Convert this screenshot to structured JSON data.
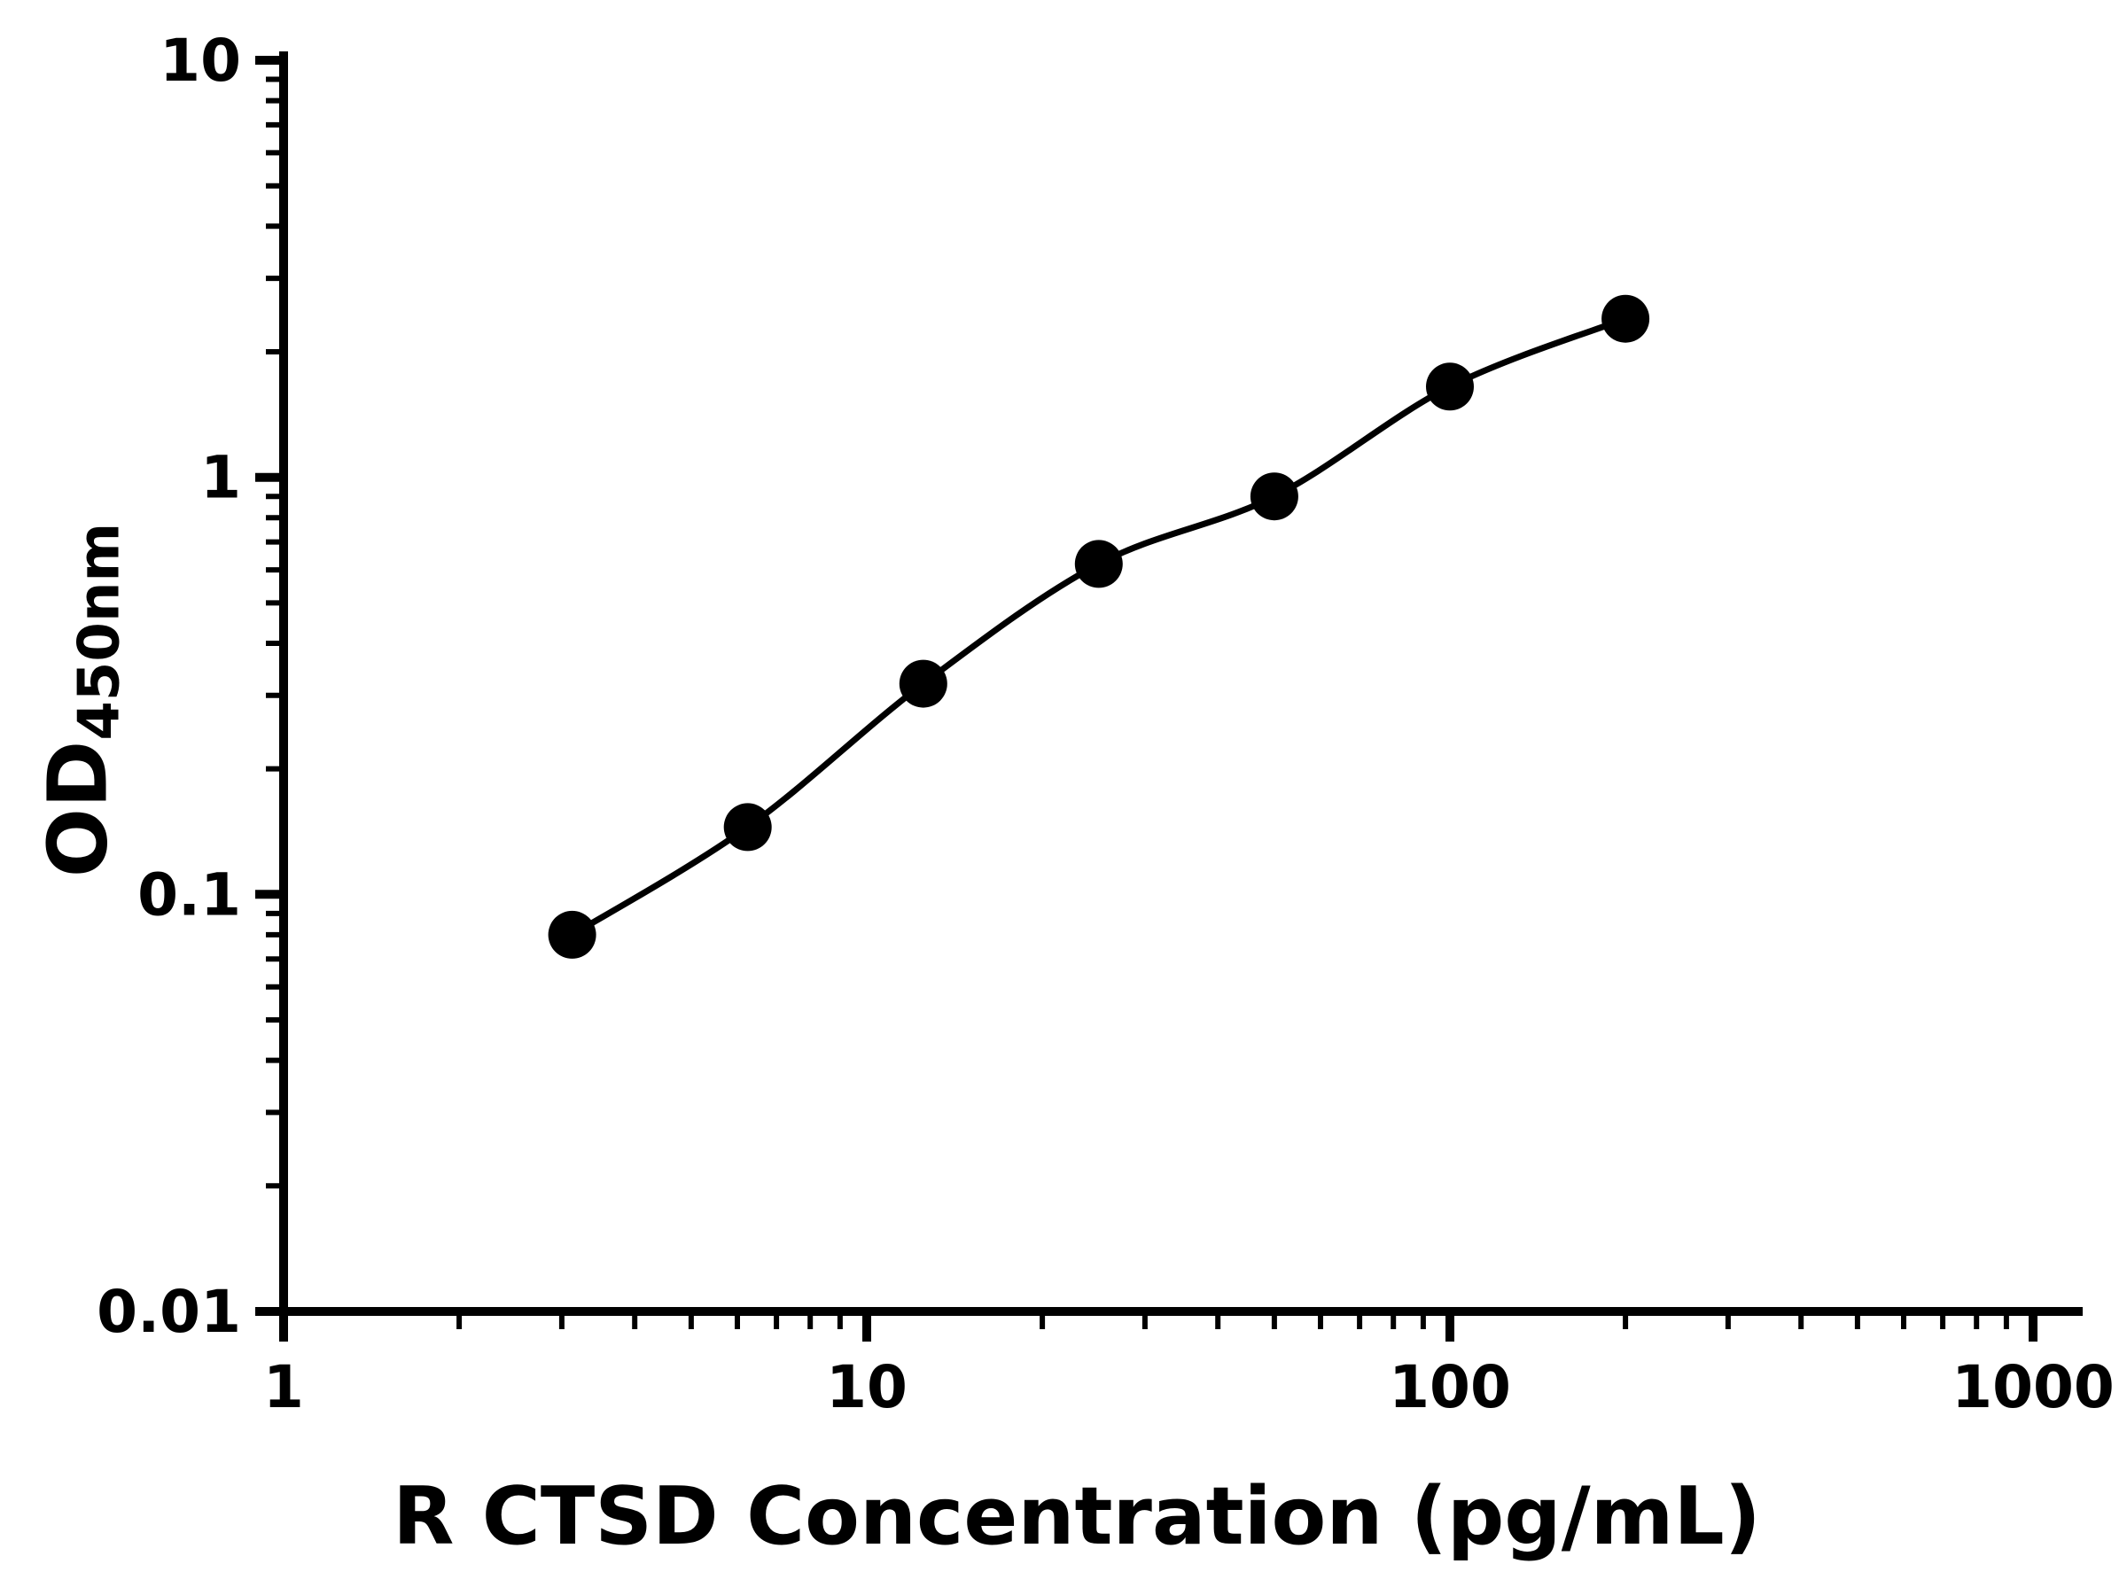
{
  "page": {
    "background": "#ffffff"
  },
  "chart_data": {
    "type": "scatter",
    "xlabel": "R CTSD Concentration (pg/mL)",
    "ylabel_base": "OD",
    "ylabel_sub": "450nm",
    "x_scale": "log",
    "y_scale": "log",
    "xlim": [
      1,
      1000
    ],
    "ylim": [
      0.01,
      10
    ],
    "x_ticks": [
      1,
      10,
      100,
      1000
    ],
    "x_tick_labels": [
      "1",
      "10",
      "100",
      "1000"
    ],
    "y_ticks": [
      0.01,
      0.1,
      1,
      10
    ],
    "y_tick_labels": [
      "0.01",
      "0.1",
      "1",
      "10"
    ],
    "minor_ticks": true,
    "grid": false,
    "legend": null,
    "series": [
      {
        "name": "standard_curve",
        "marker": "circle",
        "line": "smooth",
        "color": "#000000",
        "x": [
          3.125,
          6.25,
          12.5,
          25,
          50,
          100,
          200
        ],
        "y": [
          0.08,
          0.145,
          0.32,
          0.62,
          0.9,
          1.65,
          2.4
        ]
      }
    ],
    "colors": {
      "axis": "#000000",
      "marker": "#000000",
      "curve": "#000000",
      "background": "#ffffff"
    }
  }
}
